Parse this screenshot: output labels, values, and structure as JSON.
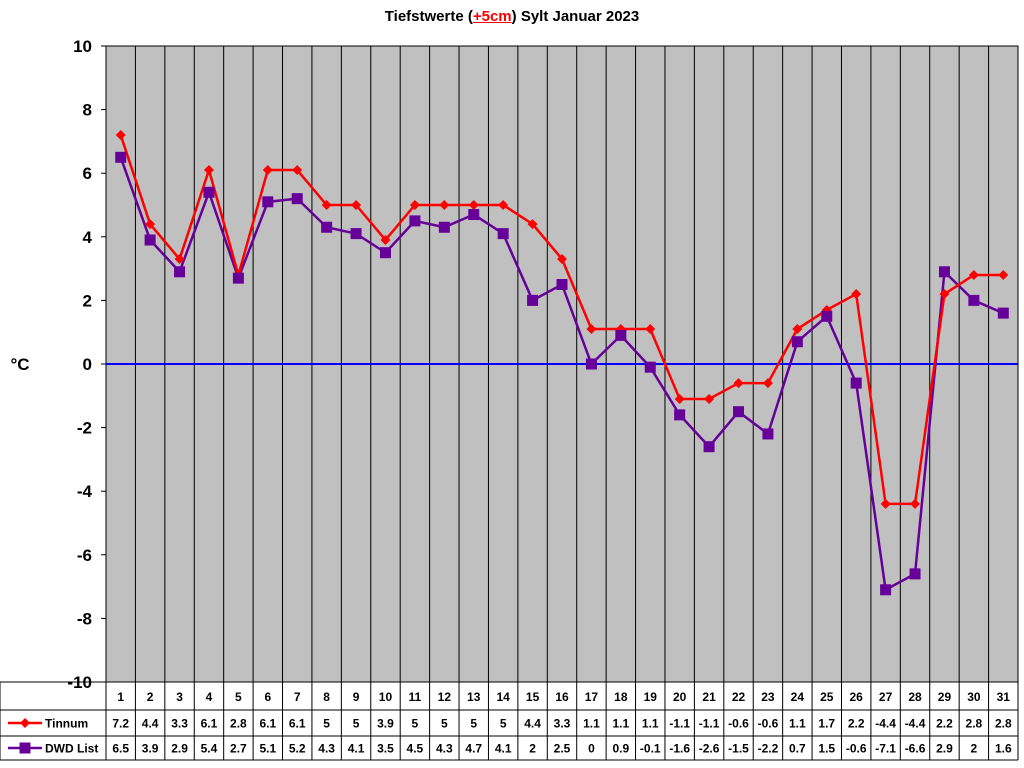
{
  "chart_data": {
    "type": "line",
    "title_pre": "Tiefstwerte (",
    "title_highlight": "+5cm",
    "title_post": ") Sylt Januar 2023",
    "ylabel": "°C",
    "ylim": [
      -10,
      10
    ],
    "y_ticks": [
      -10,
      -8,
      -6,
      -4,
      -2,
      0,
      2,
      4,
      6,
      8,
      10
    ],
    "categories": [
      "1",
      "2",
      "3",
      "4",
      "5",
      "6",
      "7",
      "8",
      "9",
      "10",
      "11",
      "12",
      "13",
      "14",
      "15",
      "16",
      "17",
      "18",
      "19",
      "20",
      "21",
      "22",
      "23",
      "24",
      "25",
      "26",
      "27",
      "28",
      "29",
      "30",
      "31"
    ],
    "grid": true,
    "plot_background": "#c0c0c0",
    "zero_line_color": "#0000ff",
    "series": [
      {
        "name": "Tinnum",
        "color": "#ff0000",
        "marker": "diamond",
        "values": [
          7.2,
          4.4,
          3.3,
          6.1,
          2.8,
          6.1,
          6.1,
          5,
          5,
          3.9,
          5,
          5,
          5,
          5,
          4.4,
          3.3,
          1.1,
          1.1,
          1.1,
          -1.1,
          -1.1,
          -0.6,
          -0.6,
          1.1,
          1.7,
          2.2,
          -4.4,
          -4.4,
          2.2,
          2.8,
          2.8
        ]
      },
      {
        "name": "DWD List",
        "color": "#660099",
        "marker": "square",
        "values": [
          6.5,
          3.9,
          2.9,
          5.4,
          2.7,
          5.1,
          5.2,
          4.3,
          4.1,
          3.5,
          4.5,
          4.3,
          4.7,
          4.1,
          2,
          2.5,
          0,
          0.9,
          -0.1,
          -1.6,
          -2.6,
          -1.5,
          -2.2,
          0.7,
          1.5,
          -0.6,
          -7.1,
          -6.6,
          2.9,
          2,
          1.6
        ]
      }
    ]
  }
}
